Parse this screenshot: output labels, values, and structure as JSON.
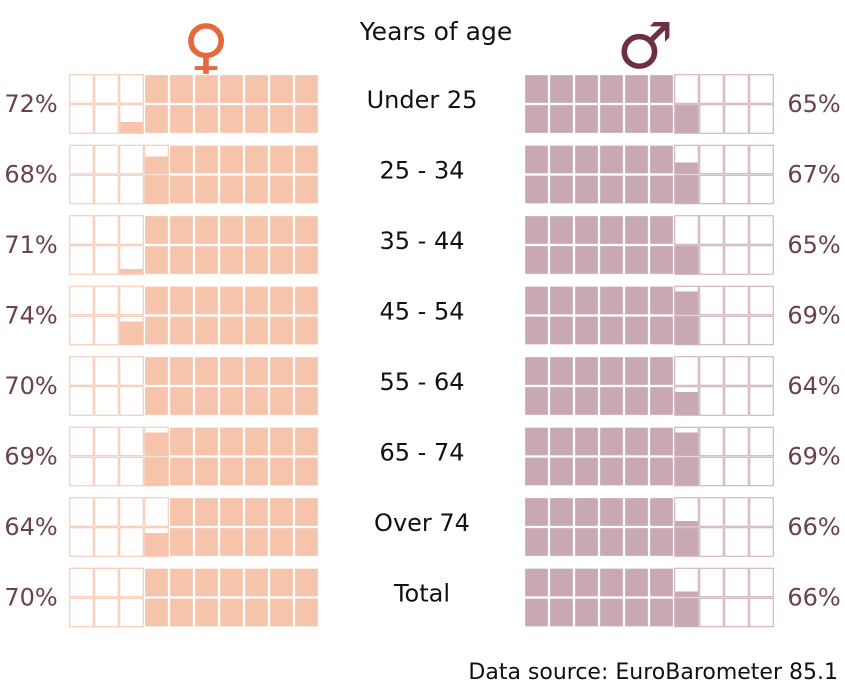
{
  "chart_data": {
    "type": "waffle",
    "center_title": "Years of age",
    "categories": [
      "Under 25",
      "25 - 34",
      "35 - 44",
      "45 - 54",
      "55 - 64",
      "65 - 74",
      "Over 74",
      "Total"
    ],
    "series": [
      {
        "symbol": "♀",
        "values": [
          72,
          68,
          71,
          74,
          70,
          69,
          64,
          70
        ],
        "value_labels": [
          "72%",
          "68%",
          "71%",
          "74%",
          "70%",
          "69%",
          "64%",
          "70%"
        ],
        "color": "#f6c4ab",
        "symbol_color": "#e8683e"
      },
      {
        "symbol": "♂",
        "values": [
          65,
          67,
          65,
          69,
          64,
          69,
          66,
          66
        ],
        "value_labels": [
          "65%",
          "67%",
          "65%",
          "69%",
          "64%",
          "69%",
          "66%",
          "66%"
        ],
        "color": "#c8a9b1",
        "symbol_color": "#6e2f44"
      }
    ],
    "label_color": "#6a4151",
    "source": "Data source: EuroBarometer 85.1"
  }
}
